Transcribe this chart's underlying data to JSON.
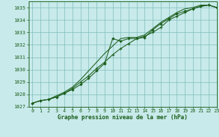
{
  "title": "Graphe pression niveau de la mer (hPa)",
  "bg_color": "#c8eaea",
  "line_color": "#1a5c1a",
  "grid_color": "#7ab8b8",
  "xlim": [
    -0.5,
    23
  ],
  "ylim": [
    1027,
    1035.5
  ],
  "yticks": [
    1027,
    1028,
    1029,
    1030,
    1031,
    1032,
    1033,
    1034,
    1035
  ],
  "xticks": [
    0,
    1,
    2,
    3,
    4,
    5,
    6,
    7,
    8,
    9,
    10,
    11,
    12,
    13,
    14,
    15,
    16,
    17,
    18,
    19,
    20,
    21,
    22,
    23
  ],
  "series1_x": [
    0,
    1,
    2,
    3,
    4,
    5,
    6,
    7,
    8,
    9,
    10,
    11,
    12,
    13,
    14,
    15,
    16,
    17,
    18,
    19,
    20,
    21,
    22,
    23
  ],
  "series1_y": [
    1027.3,
    1027.5,
    1027.6,
    1027.8,
    1028.1,
    1028.4,
    1028.8,
    1029.3,
    1029.9,
    1030.5,
    1032.5,
    1032.3,
    1032.5,
    1032.5,
    1032.6,
    1033.2,
    1033.7,
    1034.1,
    1034.5,
    1034.7,
    1034.9,
    1035.1,
    1035.2,
    1035.0
  ],
  "series2_x": [
    0,
    1,
    2,
    3,
    4,
    5,
    6,
    7,
    8,
    9,
    10,
    11,
    12,
    13,
    14,
    15,
    16,
    17,
    18,
    19,
    20,
    21,
    22,
    23
  ],
  "series2_y": [
    1027.3,
    1027.5,
    1027.6,
    1027.8,
    1028.1,
    1028.5,
    1029.0,
    1029.5,
    1030.1,
    1030.6,
    1031.2,
    1031.7,
    1032.1,
    1032.5,
    1032.7,
    1033.0,
    1033.4,
    1034.0,
    1034.3,
    1034.6,
    1034.9,
    1035.1,
    1035.2,
    1035.0
  ],
  "series3_x": [
    0,
    1,
    2,
    3,
    4,
    5,
    6,
    7,
    8,
    9,
    10,
    11,
    12,
    13,
    14,
    15,
    16,
    17,
    18,
    19,
    20,
    21,
    22,
    23
  ],
  "series3_y": [
    1027.3,
    1027.5,
    1027.6,
    1027.9,
    1028.2,
    1028.6,
    1029.2,
    1029.9,
    1030.6,
    1031.3,
    1031.9,
    1032.5,
    1032.6,
    1032.6,
    1032.8,
    1033.3,
    1033.8,
    1034.2,
    1034.6,
    1034.9,
    1035.0,
    1035.2,
    1035.2,
    1035.0
  ],
  "ylabel_fontsize": 5.0,
  "xlabel_fontsize": 6.0,
  "tick_fontsize": 5.0
}
